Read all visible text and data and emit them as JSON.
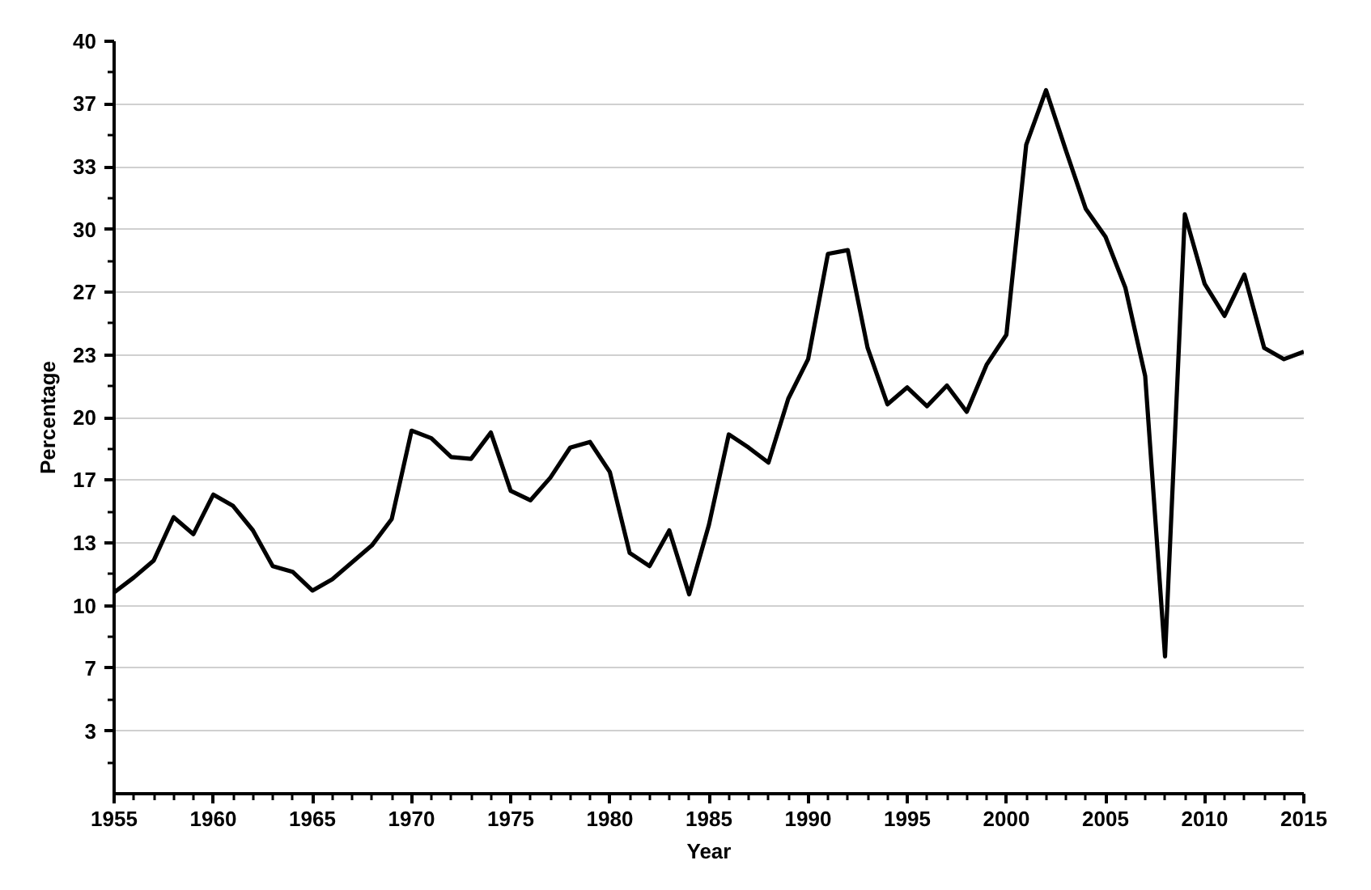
{
  "chart_data": {
    "type": "line",
    "xlabel": "Year",
    "ylabel": "Percentage",
    "x": [
      1955,
      1956,
      1957,
      1958,
      1959,
      1960,
      1961,
      1962,
      1963,
      1964,
      1965,
      1966,
      1967,
      1968,
      1969,
      1970,
      1971,
      1972,
      1973,
      1974,
      1975,
      1976,
      1977,
      1978,
      1979,
      1980,
      1981,
      1982,
      1983,
      1984,
      1985,
      1986,
      1987,
      1988,
      1989,
      1990,
      1991,
      1992,
      1993,
      1994,
      1995,
      1996,
      1997,
      1998,
      1999,
      2000,
      2001,
      2002,
      2003,
      2004,
      2005,
      2006,
      2007,
      2008,
      2009,
      2010,
      2011,
      2012,
      2013,
      2014,
      2015
    ],
    "series": [
      {
        "color": "#000000",
        "values": [
          10.7,
          11.5,
          12.4,
          14.7,
          13.8,
          15.9,
          15.3,
          14.0,
          12.1,
          11.8,
          10.8,
          11.4,
          12.3,
          13.2,
          14.6,
          19.3,
          18.9,
          17.9,
          17.8,
          19.2,
          16.1,
          15.6,
          16.8,
          18.4,
          18.7,
          17.1,
          12.8,
          12.1,
          14.0,
          10.6,
          14.3,
          19.1,
          18.4,
          17.6,
          21.0,
          23.1,
          28.7,
          28.9,
          23.7,
          20.7,
          21.6,
          20.6,
          21.7,
          20.3,
          22.8,
          24.4,
          34.5,
          37.4,
          34.2,
          31.1,
          29.6,
          26.9,
          22.2,
          7.3,
          30.8,
          27.1,
          25.4,
          27.6,
          23.7,
          23.1,
          23.5
        ]
      }
    ],
    "xlim": [
      1955,
      2015
    ],
    "xticks": [
      1955,
      1960,
      1965,
      1970,
      1975,
      1980,
      1985,
      1990,
      1995,
      2000,
      2005,
      2010,
      2015
    ],
    "ylim": [
      0,
      40
    ],
    "yticks": [
      {
        "value": 3.33,
        "label": "3"
      },
      {
        "value": 6.67,
        "label": "7"
      },
      10,
      {
        "value": 13.33,
        "label": "13"
      },
      {
        "value": 16.67,
        "label": "17"
      },
      20,
      {
        "value": 23.33,
        "label": "23"
      },
      {
        "value": 26.67,
        "label": "27"
      },
      30,
      {
        "value": 33.33,
        "label": "33"
      },
      {
        "value": 36.67,
        "label": "37"
      },
      40
    ],
    "grid": "y",
    "marker": "none",
    "line_style": "solid"
  }
}
